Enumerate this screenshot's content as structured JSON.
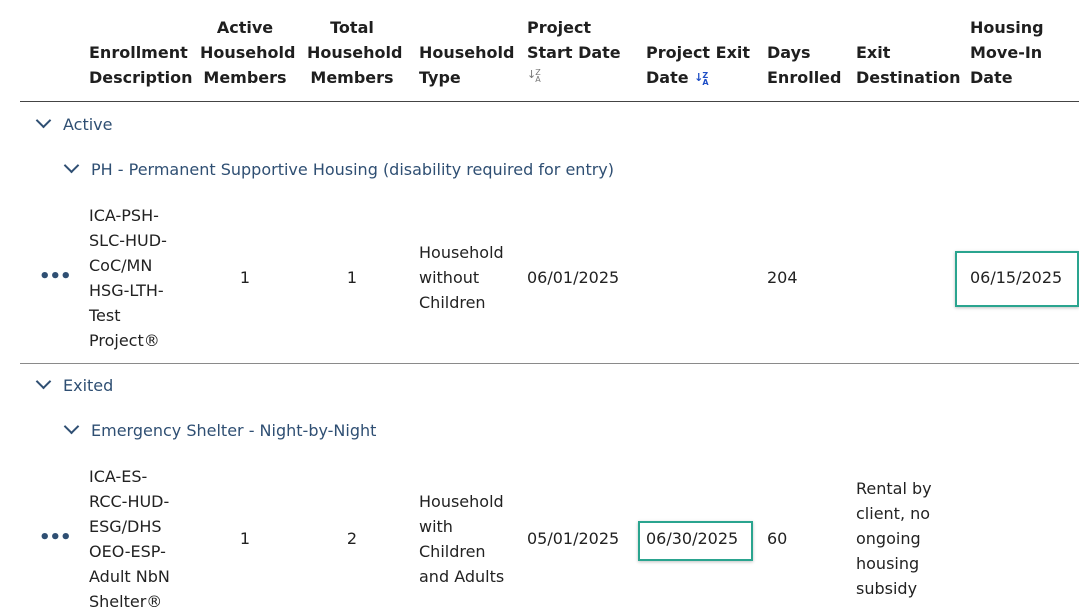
{
  "headers": {
    "enrollment_description": "Enrollment Description",
    "active_household_members": "Active Household Members",
    "total_household_members": "Total Household Members",
    "household_type": "Household Type",
    "project_start_date": "Project Start Date",
    "project_exit_date": "Project Exit Date",
    "days_enrolled": "Days Enrolled",
    "exit_destination": "Exit Destination",
    "housing_move_in_date": "Housing Move-In Date"
  },
  "groups": [
    {
      "label": "Active",
      "subgroup": "PH - Permanent Supportive Housing (disability required for entry)",
      "row": {
        "actions": "•••",
        "enrollment_description": "ICA-PSH-SLC-HUD-CoC/MN HSG-LTH-Test Project®",
        "active_members": "1",
        "total_members": "1",
        "household_type": "Household without Children",
        "start_date": "06/01/2025",
        "exit_date": "",
        "days_enrolled": "204",
        "exit_destination": "",
        "move_in_date": "06/15/2025"
      }
    },
    {
      "label": "Exited",
      "subgroup": "Emergency Shelter - Night-by-Night",
      "row": {
        "actions": "•••",
        "enrollment_description": "ICA-ES-RCC-HUD-ESG/DHS OEO-ESP-Adult NbN Shelter®",
        "active_members": "1",
        "total_members": "2",
        "household_type": "Household with Children and Adults",
        "start_date": "05/01/2025",
        "exit_date": "06/30/2025",
        "days_enrolled": "60",
        "exit_destination": "Rental by client, no ongoing housing subsidy",
        "move_in_date": ""
      }
    }
  ],
  "colors": {
    "group_text": "#2f4f73",
    "highlight": "#2aa48f",
    "sort_active": "#1f4fc6"
  }
}
